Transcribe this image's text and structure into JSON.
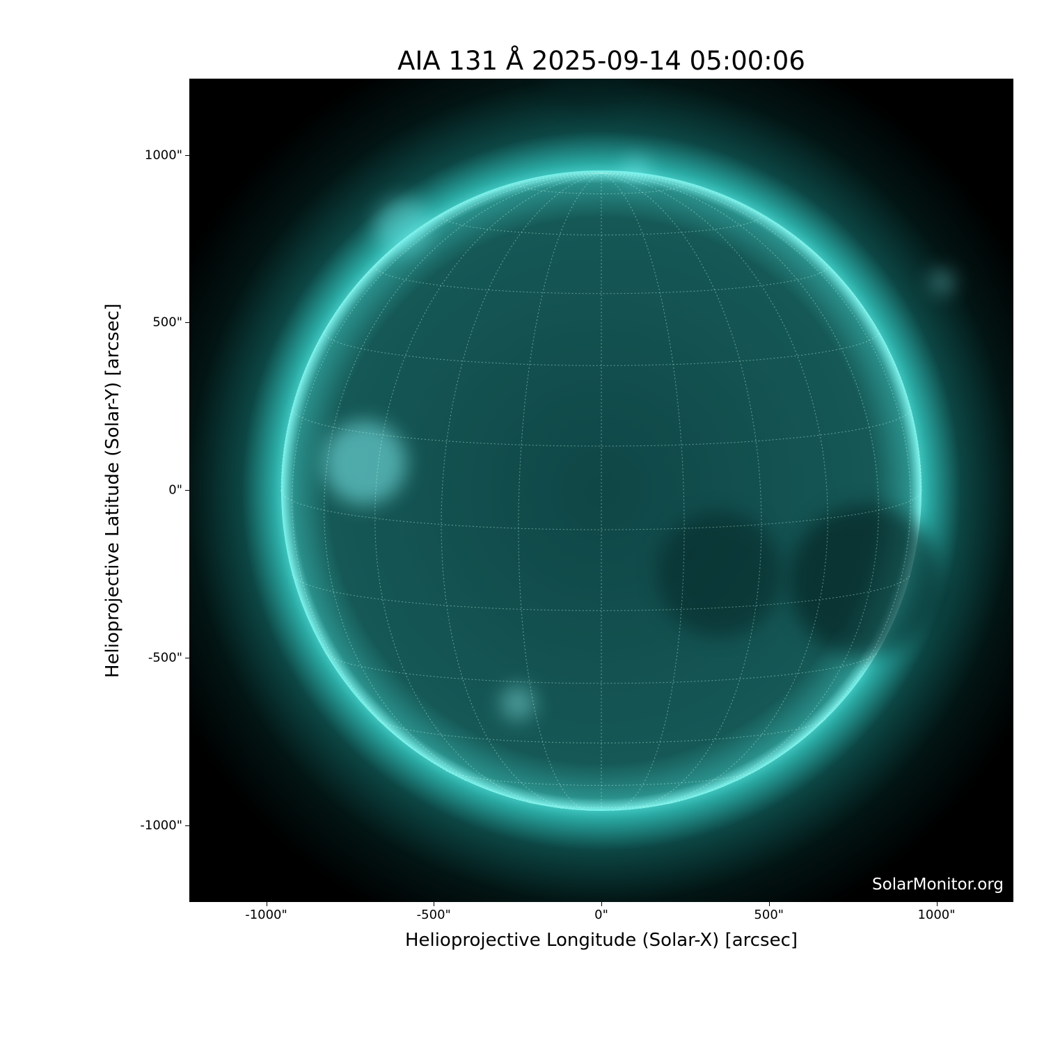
{
  "title": "AIA 131 Å 2025-09-14 05:00:06",
  "watermark": "SolarMonitor.org",
  "x_axis": {
    "label": "Helioprojective Longitude (Solar-X) [arcsec]",
    "ticks": [
      -1000,
      -500,
      0,
      500,
      1000
    ],
    "tick_labels": [
      "-1000\"",
      "-500\"",
      "0\"",
      "500\"",
      "1000\""
    ]
  },
  "y_axis": {
    "label": "Helioprojective Latitude (Solar-Y) [arcsec]",
    "ticks": [
      1000,
      500,
      0,
      -500,
      -1000
    ],
    "tick_labels": [
      "1000\"",
      "500\"",
      "0\"",
      "-500\"",
      "-1000\""
    ]
  },
  "colors": {
    "background": "#000000",
    "disk": "#0e4a4a",
    "limb": "#5ff0e8"
  },
  "grid": true
}
